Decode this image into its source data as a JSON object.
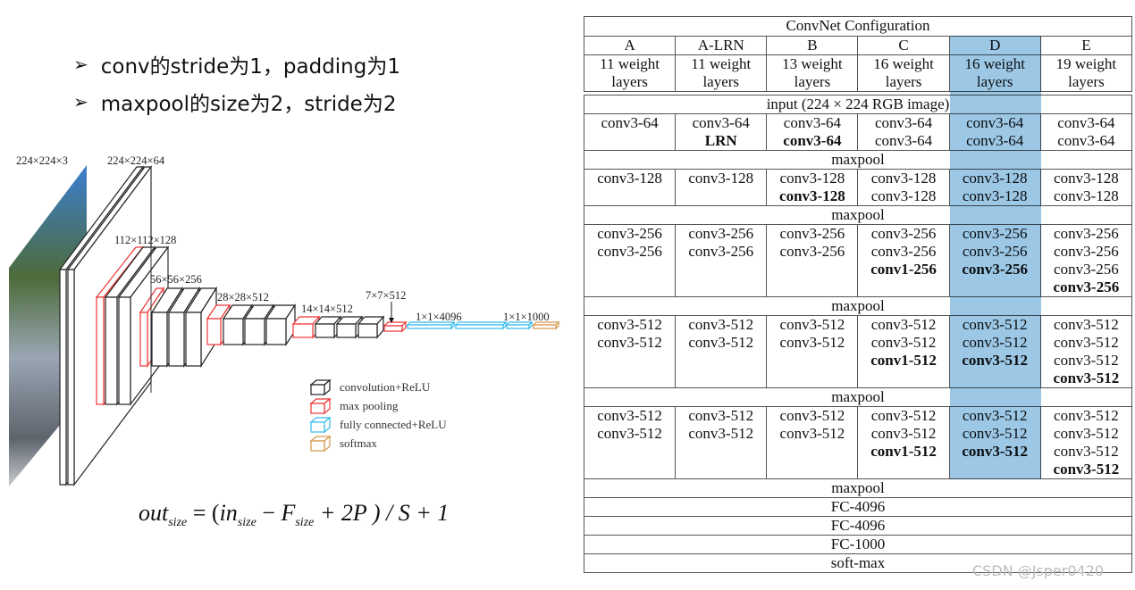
{
  "bullets": [
    {
      "icon": "arrow-bullet-icon",
      "text": "conv的stride为1，padding为1"
    },
    {
      "icon": "arrow-bullet-icon",
      "text": "maxpool的size为2，stride为2"
    }
  ],
  "diagram": {
    "labels": [
      "224×224×3",
      "224×224×64",
      "112×112×128",
      "56×56×256",
      "28×28×512",
      "14×14×512",
      "7×7×512",
      "1×1×4096",
      "1×1×1000"
    ],
    "legend": [
      {
        "label": "convolution+ReLU",
        "color": "#222222"
      },
      {
        "label": "max pooling",
        "color": "#ee3333"
      },
      {
        "label": "fully connected+ReLU",
        "color": "#33bbee"
      },
      {
        "label": "softmax",
        "color": "#d4974a"
      }
    ]
  },
  "formula": {
    "out": "out",
    "out_sub": "size",
    "in": "in",
    "in_sub": "size",
    "f": "F",
    "f_sub": "size",
    "rest": "+ 2P ) / S + 1"
  },
  "table": {
    "title": "ConvNet Configuration",
    "highlight_color": "#9cc8e6",
    "highlight_column": "D",
    "columns": [
      "A",
      "A-LRN",
      "B",
      "C",
      "D",
      "E"
    ],
    "depths": [
      [
        "11 weight",
        "layers"
      ],
      [
        "11 weight",
        "layers"
      ],
      [
        "13 weight",
        "layers"
      ],
      [
        "16 weight",
        "layers"
      ],
      [
        "16 weight",
        "layers"
      ],
      [
        "19 weight",
        "layers"
      ]
    ],
    "rows": [
      {
        "full": "input (224 × 224 RGB image)"
      },
      {
        "cells": [
          [
            [
              "conv3-64",
              0
            ]
          ],
          [
            [
              "conv3-64",
              0
            ],
            [
              "LRN",
              1
            ]
          ],
          [
            [
              "conv3-64",
              0
            ],
            [
              "conv3-64",
              1
            ]
          ],
          [
            [
              "conv3-64",
              0
            ],
            [
              "conv3-64",
              0
            ]
          ],
          [
            [
              "conv3-64",
              0
            ],
            [
              "conv3-64",
              0
            ]
          ],
          [
            [
              "conv3-64",
              0
            ],
            [
              "conv3-64",
              0
            ]
          ]
        ]
      },
      {
        "full": "maxpool"
      },
      {
        "cells": [
          [
            [
              "conv3-128",
              0
            ]
          ],
          [
            [
              "conv3-128",
              0
            ]
          ],
          [
            [
              "conv3-128",
              0
            ],
            [
              "conv3-128",
              1
            ]
          ],
          [
            [
              "conv3-128",
              0
            ],
            [
              "conv3-128",
              0
            ]
          ],
          [
            [
              "conv3-128",
              0
            ],
            [
              "conv3-128",
              0
            ]
          ],
          [
            [
              "conv3-128",
              0
            ],
            [
              "conv3-128",
              0
            ]
          ]
        ]
      },
      {
        "full": "maxpool"
      },
      {
        "cells": [
          [
            [
              "conv3-256",
              0
            ],
            [
              "conv3-256",
              0
            ]
          ],
          [
            [
              "conv3-256",
              0
            ],
            [
              "conv3-256",
              0
            ]
          ],
          [
            [
              "conv3-256",
              0
            ],
            [
              "conv3-256",
              0
            ]
          ],
          [
            [
              "conv3-256",
              0
            ],
            [
              "conv3-256",
              0
            ],
            [
              "conv1-256",
              1
            ]
          ],
          [
            [
              "conv3-256",
              0
            ],
            [
              "conv3-256",
              0
            ],
            [
              "conv3-256",
              1
            ]
          ],
          [
            [
              "conv3-256",
              0
            ],
            [
              "conv3-256",
              0
            ],
            [
              "conv3-256",
              0
            ],
            [
              "conv3-256",
              1
            ]
          ]
        ]
      },
      {
        "full": "maxpool"
      },
      {
        "cells": [
          [
            [
              "conv3-512",
              0
            ],
            [
              "conv3-512",
              0
            ]
          ],
          [
            [
              "conv3-512",
              0
            ],
            [
              "conv3-512",
              0
            ]
          ],
          [
            [
              "conv3-512",
              0
            ],
            [
              "conv3-512",
              0
            ]
          ],
          [
            [
              "conv3-512",
              0
            ],
            [
              "conv3-512",
              0
            ],
            [
              "conv1-512",
              1
            ]
          ],
          [
            [
              "conv3-512",
              0
            ],
            [
              "conv3-512",
              0
            ],
            [
              "conv3-512",
              1
            ]
          ],
          [
            [
              "conv3-512",
              0
            ],
            [
              "conv3-512",
              0
            ],
            [
              "conv3-512",
              0
            ],
            [
              "conv3-512",
              1
            ]
          ]
        ]
      },
      {
        "full": "maxpool"
      },
      {
        "cells": [
          [
            [
              "conv3-512",
              0
            ],
            [
              "conv3-512",
              0
            ]
          ],
          [
            [
              "conv3-512",
              0
            ],
            [
              "conv3-512",
              0
            ]
          ],
          [
            [
              "conv3-512",
              0
            ],
            [
              "conv3-512",
              0
            ]
          ],
          [
            [
              "conv3-512",
              0
            ],
            [
              "conv3-512",
              0
            ],
            [
              "conv1-512",
              1
            ]
          ],
          [
            [
              "conv3-512",
              0
            ],
            [
              "conv3-512",
              0
            ],
            [
              "conv3-512",
              1
            ]
          ],
          [
            [
              "conv3-512",
              0
            ],
            [
              "conv3-512",
              0
            ],
            [
              "conv3-512",
              0
            ],
            [
              "conv3-512",
              1
            ]
          ]
        ]
      },
      {
        "full": "maxpool"
      },
      {
        "full": "FC-4096"
      },
      {
        "full": "FC-4096"
      },
      {
        "full": "FC-1000"
      },
      {
        "full": "soft-max"
      }
    ]
  },
  "watermark": "CSDN @Jsper0420"
}
